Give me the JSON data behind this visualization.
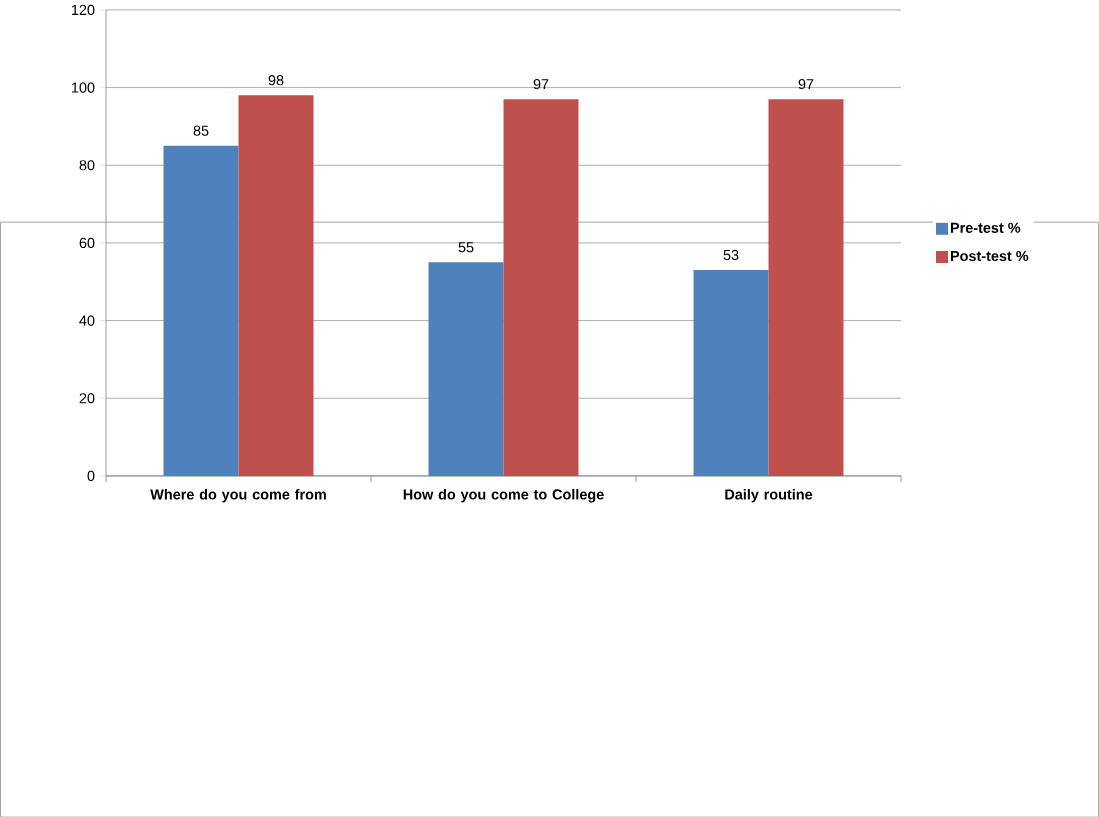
{
  "chart_data": {
    "type": "bar",
    "categories": [
      "Where do you come from",
      "How do you come to College",
      "Daily routine"
    ],
    "series": [
      {
        "name": "Pre-test %",
        "color": "#4f81bd",
        "values": [
          85,
          55,
          53
        ]
      },
      {
        "name": "Post-test  %",
        "color": "#c0504d",
        "values": [
          98,
          97,
          97
        ]
      }
    ],
    "ylim": [
      0,
      120
    ],
    "yticks": [
      0,
      20,
      40,
      60,
      80,
      100,
      120
    ],
    "grid": "y",
    "legend": "right",
    "data_labels": true
  }
}
